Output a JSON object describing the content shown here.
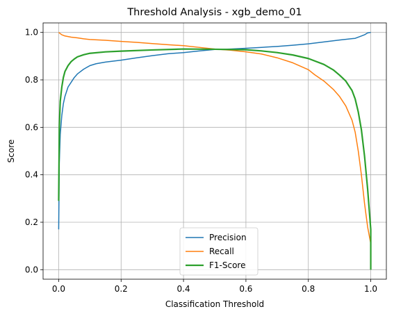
{
  "chart_data": {
    "type": "line",
    "title": "Threshold Analysis - xgb_demo_01",
    "xlabel": "Classification Threshold",
    "ylabel": "Score",
    "xlim": [
      -0.05,
      1.05
    ],
    "ylim": [
      -0.04,
      1.04
    ],
    "xticks": [
      0.0,
      0.2,
      0.4,
      0.6,
      0.8,
      1.0
    ],
    "xtick_labels": [
      "0.0",
      "0.2",
      "0.4",
      "0.6",
      "0.8",
      "1.0"
    ],
    "yticks": [
      0.0,
      0.2,
      0.4,
      0.6,
      0.8,
      1.0
    ],
    "ytick_labels": [
      "0.0",
      "0.2",
      "0.4",
      "0.6",
      "0.8",
      "1.0"
    ],
    "grid": true,
    "legend_position": "lower-center",
    "series": [
      {
        "name": "Precision",
        "color": "#1f77b4",
        "linewidth": 1.5,
        "x": [
          0.0,
          0.002,
          0.005,
          0.01,
          0.015,
          0.02,
          0.03,
          0.04,
          0.05,
          0.06,
          0.08,
          0.1,
          0.12,
          0.15,
          0.2,
          0.25,
          0.3,
          0.35,
          0.4,
          0.45,
          0.5,
          0.55,
          0.6,
          0.65,
          0.7,
          0.75,
          0.8,
          0.85,
          0.9,
          0.95,
          0.97,
          0.98,
          0.99,
          1.0
        ],
        "values": [
          0.17,
          0.45,
          0.57,
          0.65,
          0.7,
          0.73,
          0.77,
          0.79,
          0.81,
          0.825,
          0.845,
          0.86,
          0.868,
          0.875,
          0.883,
          0.893,
          0.902,
          0.91,
          0.915,
          0.922,
          0.928,
          0.93,
          0.933,
          0.937,
          0.941,
          0.946,
          0.952,
          0.96,
          0.968,
          0.975,
          0.985,
          0.99,
          0.998,
          1.0
        ]
      },
      {
        "name": "Recall",
        "color": "#ff7f0e",
        "linewidth": 1.5,
        "x": [
          0.0,
          0.01,
          0.02,
          0.04,
          0.06,
          0.08,
          0.1,
          0.15,
          0.2,
          0.25,
          0.3,
          0.35,
          0.4,
          0.45,
          0.5,
          0.55,
          0.6,
          0.65,
          0.7,
          0.75,
          0.8,
          0.82,
          0.85,
          0.88,
          0.9,
          0.92,
          0.94,
          0.95,
          0.96,
          0.97,
          0.98,
          0.99,
          1.0
        ],
        "values": [
          1.0,
          0.99,
          0.985,
          0.98,
          0.977,
          0.973,
          0.97,
          0.967,
          0.962,
          0.958,
          0.953,
          0.948,
          0.944,
          0.937,
          0.93,
          0.925,
          0.918,
          0.909,
          0.893,
          0.872,
          0.843,
          0.822,
          0.795,
          0.76,
          0.73,
          0.69,
          0.63,
          0.58,
          0.5,
          0.4,
          0.28,
          0.18,
          0.11
        ]
      },
      {
        "name": "F1-Score",
        "color": "#2ca02c",
        "linewidth": 2.2,
        "x": [
          0.0,
          0.002,
          0.005,
          0.01,
          0.015,
          0.02,
          0.03,
          0.04,
          0.05,
          0.06,
          0.08,
          0.1,
          0.15,
          0.2,
          0.3,
          0.4,
          0.5,
          0.6,
          0.65,
          0.7,
          0.75,
          0.8,
          0.85,
          0.88,
          0.9,
          0.92,
          0.94,
          0.95,
          0.96,
          0.97,
          0.98,
          0.99,
          0.997,
          1.0,
          1.0
        ],
        "values": [
          0.29,
          0.6,
          0.71,
          0.77,
          0.81,
          0.835,
          0.86,
          0.877,
          0.888,
          0.897,
          0.906,
          0.912,
          0.918,
          0.921,
          0.926,
          0.93,
          0.929,
          0.927,
          0.922,
          0.915,
          0.905,
          0.89,
          0.865,
          0.842,
          0.82,
          0.795,
          0.755,
          0.72,
          0.665,
          0.59,
          0.48,
          0.34,
          0.22,
          0.17,
          0.0
        ]
      }
    ]
  }
}
